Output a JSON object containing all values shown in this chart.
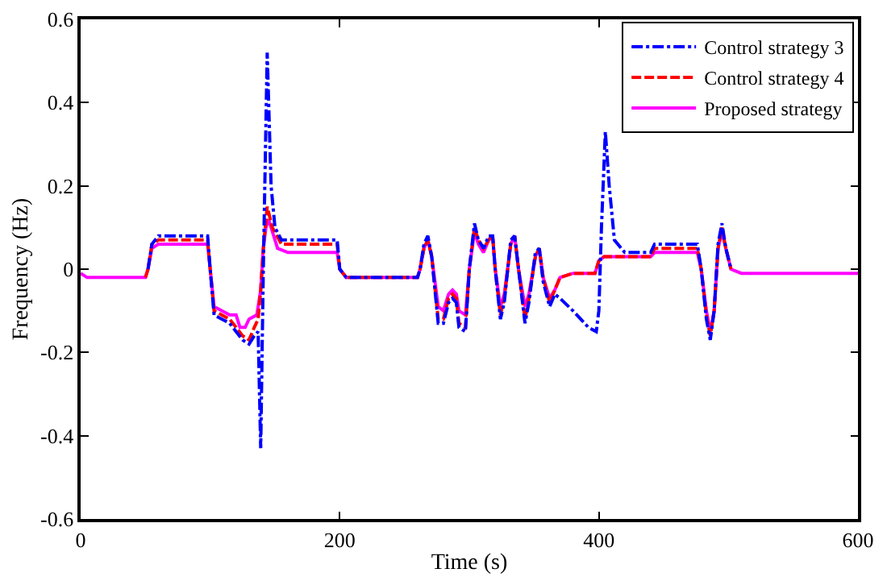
{
  "chart_data": {
    "type": "line",
    "xlabel": "Time (s)",
    "ylabel": "Frequency (Hz)",
    "xlim": [
      0,
      600
    ],
    "ylim": [
      -0.6,
      0.6
    ],
    "xticks": [
      0,
      200,
      400,
      600
    ],
    "yticks": [
      -0.6,
      -0.4,
      -0.2,
      0,
      0.2,
      0.4,
      0.6
    ],
    "grid": false,
    "legend": "top right",
    "marker": "none",
    "series": [
      {
        "name": "Control strategy 3",
        "color": "#0000ff",
        "line_style": "dashdot",
        "x": [
          52,
          55,
          60,
          98,
          100,
          103,
          115,
          120,
          125,
          130,
          134,
          137,
          139,
          141,
          144,
          147,
          150,
          155,
          160,
          198,
          200,
          205,
          260,
          262,
          265,
          268,
          271,
          276,
          280,
          284,
          287,
          290,
          292,
          297,
          300,
          304,
          307,
          311,
          315,
          318,
          320,
          324,
          327,
          332,
          335,
          338,
          343,
          346,
          351,
          354,
          357,
          362,
          366,
          370,
          380,
          392,
          398,
          400,
          402,
          405,
          408,
          412,
          420,
          440,
          443,
          476,
          479,
          483,
          486,
          489,
          492,
          495,
          498,
          502
        ],
        "values": [
          0.0,
          0.06,
          0.08,
          0.08,
          0.0,
          -0.11,
          -0.13,
          -0.15,
          -0.17,
          -0.18,
          -0.16,
          -0.15,
          -0.43,
          0.0,
          0.52,
          0.2,
          0.1,
          0.07,
          0.07,
          0.07,
          0.0,
          -0.02,
          -0.02,
          0.0,
          0.06,
          0.08,
          0.03,
          -0.13,
          -0.13,
          -0.08,
          -0.07,
          -0.08,
          -0.14,
          -0.15,
          0.0,
          0.11,
          0.07,
          0.05,
          0.08,
          0.08,
          0.0,
          -0.12,
          -0.08,
          0.07,
          0.08,
          0.0,
          -0.13,
          -0.08,
          0.04,
          0.05,
          -0.03,
          -0.09,
          -0.06,
          -0.07,
          -0.1,
          -0.14,
          -0.15,
          -0.1,
          0.1,
          0.33,
          0.2,
          0.07,
          0.04,
          0.04,
          0.06,
          0.06,
          0.0,
          -0.12,
          -0.17,
          -0.1,
          0.06,
          0.11,
          0.05,
          0.0
        ]
      },
      {
        "name": "Control strategy 4",
        "color": "#ff0000",
        "line_style": "dash",
        "x": [
          50,
          52,
          55,
          60,
          98,
          100,
          103,
          115,
          120,
          125,
          130,
          134,
          137,
          139,
          141,
          144,
          148,
          155,
          160,
          198,
          200,
          205,
          260,
          262,
          265,
          268,
          271,
          276,
          280,
          284,
          287,
          290,
          292,
          297,
          300,
          304,
          307,
          311,
          315,
          318,
          320,
          324,
          327,
          332,
          335,
          338,
          343,
          346,
          351,
          354,
          357,
          362,
          366,
          370,
          380,
          397,
          400,
          404,
          440,
          443,
          476,
          479,
          483,
          486,
          489,
          492,
          495,
          498,
          502
        ],
        "values": [
          -0.02,
          0.0,
          0.06,
          0.07,
          0.07,
          0.0,
          -0.1,
          -0.12,
          -0.14,
          -0.16,
          -0.17,
          -0.14,
          -0.12,
          -0.05,
          0.05,
          0.15,
          0.1,
          0.06,
          0.06,
          0.06,
          0.0,
          -0.02,
          -0.02,
          0.0,
          0.05,
          0.07,
          0.03,
          -0.12,
          -0.12,
          -0.07,
          -0.06,
          -0.07,
          -0.13,
          -0.14,
          0.0,
          0.1,
          0.07,
          0.05,
          0.07,
          0.08,
          0.0,
          -0.11,
          -0.07,
          0.06,
          0.08,
          0.0,
          -0.12,
          -0.07,
          0.03,
          0.05,
          -0.02,
          -0.08,
          -0.05,
          -0.02,
          -0.01,
          -0.01,
          0.02,
          0.03,
          0.03,
          0.05,
          0.05,
          0.0,
          -0.11,
          -0.16,
          -0.1,
          0.05,
          0.1,
          0.05,
          0.0
        ]
      },
      {
        "name": "Proposed strategy",
        "color": "#ff00ff",
        "line_style": "solid",
        "x": [
          0,
          5,
          50,
          52,
          55,
          60,
          98,
          100,
          103,
          115,
          120,
          123,
          127,
          130,
          136,
          139,
          141,
          143,
          145,
          148,
          152,
          160,
          198,
          200,
          205,
          260,
          262,
          265,
          268,
          271,
          276,
          280,
          284,
          287,
          290,
          292,
          297,
          300,
          304,
          307,
          311,
          315,
          318,
          320,
          324,
          327,
          332,
          335,
          338,
          343,
          346,
          351,
          354,
          357,
          362,
          366,
          370,
          380,
          397,
          400,
          404,
          440,
          443,
          476,
          479,
          483,
          486,
          489,
          492,
          495,
          498,
          502,
          510,
          600
        ],
        "values": [
          -0.01,
          -0.02,
          -0.02,
          0.0,
          0.05,
          0.06,
          0.06,
          0.0,
          -0.09,
          -0.11,
          -0.11,
          -0.14,
          -0.14,
          -0.12,
          -0.11,
          -0.05,
          0.05,
          0.1,
          0.12,
          0.09,
          0.05,
          0.04,
          0.04,
          0.0,
          -0.02,
          -0.02,
          0.0,
          0.05,
          0.07,
          0.03,
          -0.09,
          -0.1,
          -0.06,
          -0.05,
          -0.06,
          -0.1,
          -0.11,
          0.0,
          0.09,
          0.06,
          0.04,
          0.07,
          0.08,
          0.0,
          -0.09,
          -0.06,
          0.06,
          0.08,
          0.0,
          -0.09,
          -0.06,
          0.03,
          0.05,
          -0.02,
          -0.07,
          -0.05,
          -0.02,
          -0.01,
          -0.01,
          0.02,
          0.03,
          0.03,
          0.04,
          0.04,
          0.0,
          -0.1,
          -0.15,
          -0.1,
          0.05,
          0.09,
          0.05,
          0.0,
          -0.01,
          -0.01
        ]
      }
    ]
  }
}
